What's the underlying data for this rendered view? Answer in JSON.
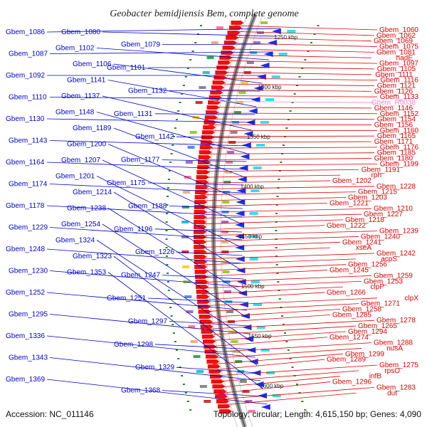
{
  "title": "Geobacter bemidjiensis Bem, complete genome",
  "accession": "Accession: NC_011146",
  "topology": "Topology: circular; Length: 4,615,150 bp; Genes: 4,090",
  "colors": {
    "left_genes": "#0000cc",
    "right_genes": "#dd0000",
    "rna": "#ee88cc",
    "backbone": "#888888",
    "tick": "#228822"
  },
  "scale_labels": [
    "1250 kbp",
    "1300 kbp",
    "1350 kbp",
    "1400 kbp",
    "1450 kbp",
    "1500 kbp",
    "1550 kbp",
    "1600 kbp"
  ],
  "left_labels": [
    "Gbem_1086",
    "Gbem_1080",
    "Gbem_1079",
    "Gbem_1087",
    "Gbem_1102",
    "Gbem_1101",
    "Gbem_1092",
    "Gbem_1106",
    "Gbem_1132",
    "Gbem_1110",
    "Gbem_1141",
    "Gbem_1131",
    "Gbem_1130",
    "Gbem_1137",
    "Gbem_1142",
    "Gbem_1143",
    "Gbem_1148",
    "Gbem_1177",
    "Gbem_1164",
    "Gbem_1189",
    "Gbem_1175",
    "Gbem_1174",
    "Gbem_1200",
    "Gbem_1188",
    "Gbem_1178",
    "Gbem_1207",
    "Gbem_1196",
    "Gbem_1229",
    "Gbem_1201",
    "Gbem_1226",
    "Gbem_1248",
    "Gbem_1214",
    "Gbem_1247",
    "Gbem_1230",
    "Gbem_1238",
    "Gbem_1251",
    "Gbem_1252",
    "Gbem_1254",
    "Gbem_1297",
    "Gbem_1295",
    "Gbem_1324",
    "Gbem_1298",
    "Gbem_1336",
    "Gbem_1323",
    "Gbem_1329",
    "Gbem_1343",
    "Gbem_1353",
    "Gbem_1368",
    "Gbem_1369"
  ],
  "right_labels": [
    "Gbem_1060",
    "Gbem_1062",
    "Gbem_1069",
    "Gbem_1075",
    "Gbem_1081",
    "nadE",
    "Gbem_1097",
    "Gbem_1105",
    "Gbem_1111",
    "Gbem_1116",
    "Gbem_1121",
    "Gbem_1126",
    "Gbem_1133",
    "Gbem_R0038",
    "Gbem_1146",
    "Gbem_1152",
    "Gbem_1154",
    "Gbem_1156",
    "Gbem_1160",
    "Gbem_1165",
    "Gbem_1171",
    "Gbem_1176",
    "Gbem_1185",
    "Gbem_1180",
    "Gbem_1199",
    "Gbem_1191",
    "rph",
    "Gbem_1202",
    "Gbem_1228",
    "Gbem_1215",
    "Gbem_1203",
    "Gbem_1221",
    "Gbem_1210",
    "Gbem_1227",
    "Gbem_1218",
    "Gbem_1222",
    "Gbem_1239",
    "Gbem_1240",
    "Gbem_1241",
    "xseA",
    "Gbem_1242",
    "acpS",
    "Gbem_1256",
    "Gbem_1245",
    "Gbem_1259",
    "Gbem_1253",
    "clpP",
    "Gbem_1266",
    "clpX",
    "Gbem_1271",
    "Gbem_1258",
    "Gbem_1285",
    "Gbem_1278",
    "Gbem_1265",
    "Gbem_1294",
    "Gbem_1274",
    "Gbem_1288",
    "nusA",
    "Gbem_1299",
    "Gbem_1289",
    "Gbem_1275",
    "rpsO",
    "infB",
    "Gbem_1296",
    "Gbem_1283",
    "dut"
  ],
  "rna_labels": [
    "Gbem_R0038"
  ]
}
